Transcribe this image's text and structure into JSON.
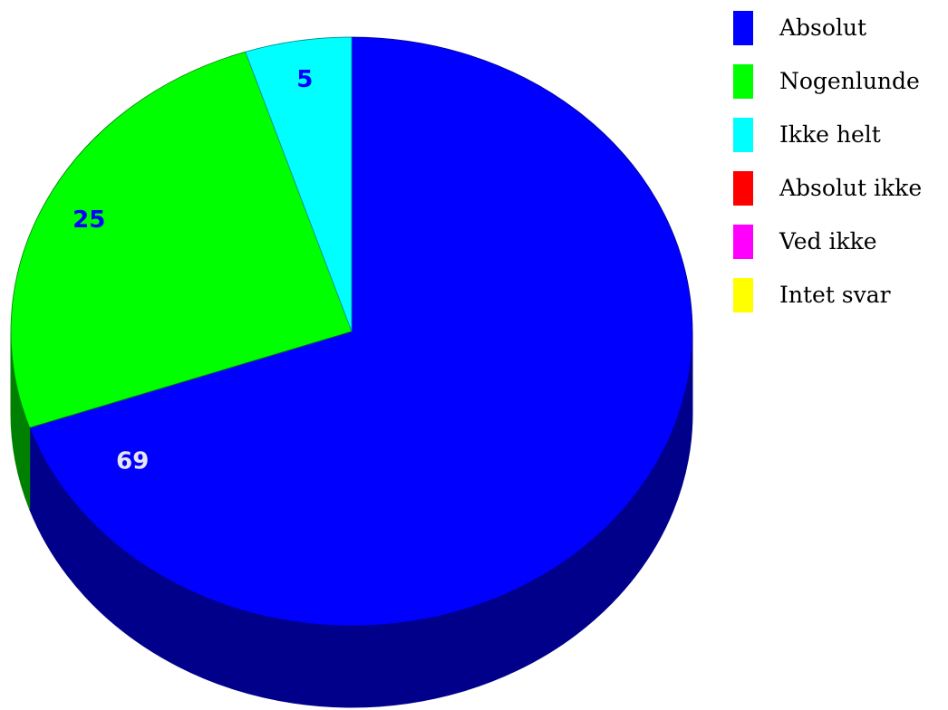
{
  "chart_data": {
    "type": "pie",
    "style": "3d",
    "title": "",
    "legend_position": "top-right",
    "start": "12 o'clock",
    "direction": "clockwise",
    "slices": [
      {
        "label": "Absolut",
        "value": 69,
        "data_label": "69",
        "color": "#0000ff",
        "side_color": "#00008b",
        "label_color": "#e6e6f0"
      },
      {
        "label": "Nogenlunde",
        "value": 25,
        "data_label": "25",
        "color": "#00ff00",
        "side_color": "#008000",
        "label_color": "#0000ff"
      },
      {
        "label": "Ikke helt",
        "value": 5,
        "data_label": "5",
        "color": "#00ffff",
        "side_color": "#008b8b",
        "label_color": "#0000ff"
      },
      {
        "label": "Absolut ikke",
        "value": 0,
        "data_label": "",
        "color": "#ff0000",
        "side_color": "#8b0000",
        "label_color": "#0000ff"
      },
      {
        "label": "Ved ikke",
        "value": 0,
        "data_label": "",
        "color": "#ff00ff",
        "side_color": "#8b008b",
        "label_color": "#0000ff"
      },
      {
        "label": "Intet svar",
        "value": 0,
        "data_label": "",
        "color": "#ffff00",
        "side_color": "#8b8b00",
        "label_color": "#0000ff"
      }
    ]
  }
}
